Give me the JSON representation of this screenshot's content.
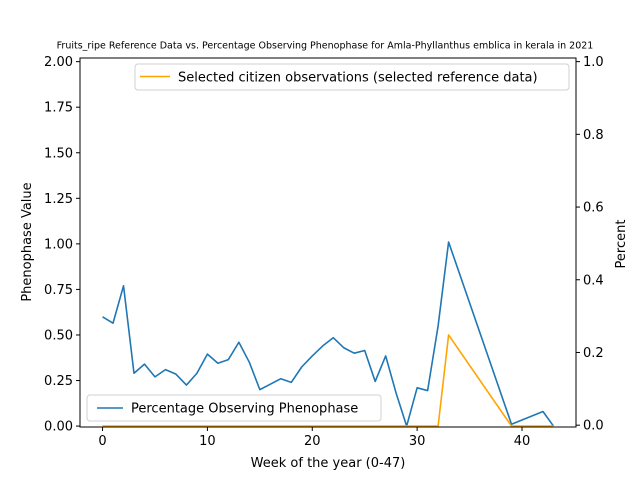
{
  "chart_data": {
    "type": "line",
    "title": "Fruits_ripe Reference Data vs. Percentage Observing Phenophase for Amla-Phyllanthus emblica in kerala in 2021",
    "xlabel": "Week of the year (0-47)",
    "ylabel_left": "Phenophase Value",
    "ylabel_right": "Percent",
    "xlim": [
      -2.15,
      45.15
    ],
    "ylim_left": [
      -0.005,
      2.02
    ],
    "ylim_right": [
      -0.005,
      1.01
    ],
    "x_ticks": [
      0,
      10,
      20,
      30,
      40
    ],
    "y_left_ticks": [
      "0.00",
      "0.25",
      "0.50",
      "0.75",
      "1.00",
      "1.25",
      "1.50",
      "1.75",
      "2.00"
    ],
    "y_right_ticks": [
      "0.0",
      "0.2",
      "0.4",
      "0.6",
      "0.8",
      "1.0"
    ],
    "grid": false,
    "series": [
      {
        "name": "Percentage Observing Phenophase",
        "axis": "left",
        "color": "#1f77b4",
        "legend_position": "lower-left",
        "points": [
          [
            0,
            0.6
          ],
          [
            1,
            0.565
          ],
          [
            2,
            0.77
          ],
          [
            3,
            0.29
          ],
          [
            4,
            0.34
          ],
          [
            5,
            0.27
          ],
          [
            6,
            0.31
          ],
          [
            7,
            0.285
          ],
          [
            8,
            0.225
          ],
          [
            9,
            0.29
          ],
          [
            10,
            0.395
          ],
          [
            11,
            0.345
          ],
          [
            12,
            0.365
          ],
          [
            13,
            0.46
          ],
          [
            14,
            0.35
          ],
          [
            15,
            0.2
          ],
          [
            16,
            0.23
          ],
          [
            17,
            0.26
          ],
          [
            18,
            0.24
          ],
          [
            19,
            0.325
          ],
          [
            20,
            0.385
          ],
          [
            21,
            0.44
          ],
          [
            22,
            0.485
          ],
          [
            23,
            0.43
          ],
          [
            24,
            0.4
          ],
          [
            25,
            0.415
          ],
          [
            26,
            0.245
          ],
          [
            27,
            0.385
          ],
          [
            28,
            0.18
          ],
          [
            29,
            0.0
          ],
          [
            30,
            0.21
          ],
          [
            31,
            0.195
          ],
          [
            32,
            0.55
          ],
          [
            33,
            1.01
          ],
          [
            39,
            0.01
          ],
          [
            42,
            0.08
          ],
          [
            43,
            0.0
          ]
        ]
      },
      {
        "name": "Selected citizen observations (selected reference data)",
        "axis": "left",
        "color": "#ffa500",
        "legend_position": "upper-right",
        "points": [
          [
            0,
            0.0
          ],
          [
            32,
            0.0
          ],
          [
            33,
            0.5
          ],
          [
            39,
            0.0
          ],
          [
            43,
            0.0
          ]
        ]
      }
    ]
  }
}
